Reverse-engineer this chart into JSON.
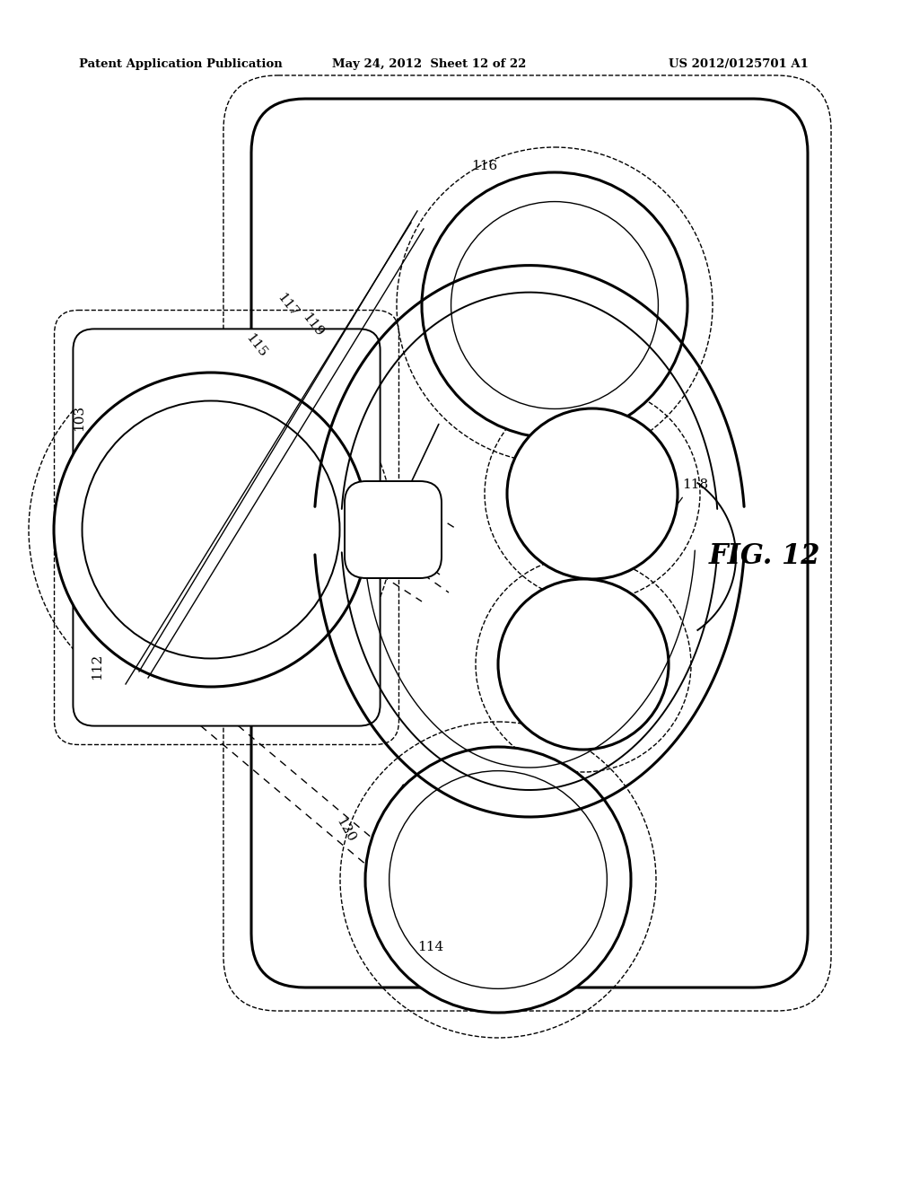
{
  "bg_color": "#ffffff",
  "header_text": "Patent Application Publication",
  "header_date": "May 24, 2012  Sheet 12 of 22",
  "header_patent": "US 2012/0125701 A1",
  "fig_label": "FIG. 12",
  "line_color": "#000000",
  "lw_thick": 2.2,
  "lw_med": 1.4,
  "lw_thin": 1.0,
  "lw_dash": 1.0
}
